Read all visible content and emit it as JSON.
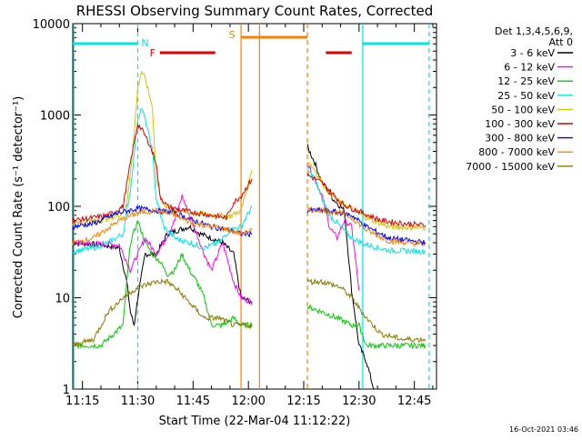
{
  "chart_data": {
    "type": "line",
    "title": "RHESSI Observing Summary Count Rates, Corrected",
    "xlabel": "Start Time (22-Mar-04 11:12:22)",
    "ylabel": "Corrected Count Rate (s⁻¹ detector⁻¹)",
    "y_scale": "log",
    "ylim": [
      1,
      10000
    ],
    "xlim": [
      "11:12:22",
      "12:51:00"
    ],
    "y_ticks": [
      {
        "value": 1,
        "label": "1"
      },
      {
        "value": 10,
        "label": "10"
      },
      {
        "value": 100,
        "label": "100"
      },
      {
        "value": 1000,
        "label": "1000"
      },
      {
        "value": 10000,
        "label": "10000"
      }
    ],
    "x_ticks": [
      {
        "value": "11:15",
        "label": "11:15"
      },
      {
        "value": "11:30",
        "label": "11:30"
      },
      {
        "value": "11:45",
        "label": "11:45"
      },
      {
        "value": "12:00",
        "label": "12:00"
      },
      {
        "value": "12:15",
        "label": "12:15"
      },
      {
        "value": "12:30",
        "label": "12:30"
      },
      {
        "value": "12:45",
        "label": "12:45"
      }
    ],
    "legend": {
      "placement": "right",
      "header": [
        "Det 1,3,4,5,6,9,",
        "Att 0"
      ],
      "entries": [
        {
          "name": "3 - 6 keV",
          "color": "#000000"
        },
        {
          "name": "6 - 12 keV",
          "color": "#ff00ff"
        },
        {
          "name": "12 - 25 keV",
          "color": "#00cc00"
        },
        {
          "name": "25 - 50 keV",
          "color": "#00e5e5"
        },
        {
          "name": "50 - 100 keV",
          "color": "#d4c400"
        },
        {
          "name": "100 - 300 keV",
          "color": "#e00000"
        },
        {
          "name": "300 - 800 keV",
          "color": "#0000ff"
        },
        {
          "name": "800 - 7000 keV",
          "color": "#ff8000"
        },
        {
          "name": "7000 - 15000 keV",
          "color": "#8a7a00"
        }
      ]
    },
    "data_gap": [
      "12:01",
      "12:16"
    ],
    "series": [
      {
        "name": "3 - 6 keV",
        "color": "#000000",
        "segments": [
          [
            [
              "11:12:22",
              40
            ],
            [
              "11:20",
              38
            ],
            [
              "11:25",
              35
            ],
            [
              "11:27",
              15
            ],
            [
              "11:28",
              7
            ],
            [
              "11:29",
              5
            ],
            [
              "11:30",
              10
            ],
            [
              "11:32",
              30
            ],
            [
              "11:35",
              30
            ],
            [
              "11:38",
              50
            ],
            [
              "11:41",
              55
            ],
            [
              "11:44",
              60
            ],
            [
              "11:47",
              50
            ],
            [
              "11:50",
              45
            ],
            [
              "11:53",
              40
            ],
            [
              "11:56",
              30
            ],
            [
              "11:58",
              10
            ],
            [
              "12:01",
              9
            ]
          ],
          [
            [
              "12:16",
              450
            ],
            [
              "12:18",
              300
            ],
            [
              "12:20",
              180
            ],
            [
              "12:23",
              120
            ],
            [
              "12:26",
              90
            ],
            [
              "12:28",
              12
            ],
            [
              "12:30",
              3
            ],
            [
              "12:32",
              2
            ],
            [
              "12:34",
              1
            ]
          ]
        ]
      },
      {
        "name": "6 - 12 keV",
        "color": "#ff00ff",
        "segments": [
          [
            [
              "11:12:22",
              40
            ],
            [
              "11:25",
              38
            ],
            [
              "11:28",
              20
            ],
            [
              "11:30",
              30
            ],
            [
              "11:32",
              45
            ],
            [
              "11:35",
              30
            ],
            [
              "11:37",
              40
            ],
            [
              "11:40",
              70
            ],
            [
              "11:42",
              130
            ],
            [
              "11:44",
              80
            ],
            [
              "11:46",
              50
            ],
            [
              "11:48",
              30
            ],
            [
              "11:50",
              20
            ],
            [
              "11:53",
              40
            ],
            [
              "11:56",
              15
            ],
            [
              "11:58",
              10
            ],
            [
              "12:01",
              9
            ]
          ],
          [
            [
              "12:16",
              300
            ],
            [
              "12:18",
              200
            ],
            [
              "12:20",
              130
            ],
            [
              "12:22",
              60
            ],
            [
              "12:24",
              45
            ],
            [
              "12:26",
              70
            ],
            [
              "12:28",
              60
            ],
            [
              "12:30",
              12
            ]
          ]
        ]
      },
      {
        "name": "12 - 25 keV",
        "color": "#00cc00",
        "segments": [
          [
            [
              "11:12:22",
              3
            ],
            [
              "11:20",
              3
            ],
            [
              "11:26",
              5
            ],
            [
              "11:28",
              40
            ],
            [
              "11:30",
              70
            ],
            [
              "11:32",
              40
            ],
            [
              "11:34",
              30
            ],
            [
              "11:36",
              25
            ],
            [
              "11:38",
              18
            ],
            [
              "11:40",
              20
            ],
            [
              "11:42",
              30
            ],
            [
              "11:44",
              20
            ],
            [
              "11:46",
              15
            ],
            [
              "11:48",
              10
            ],
            [
              "11:50",
              5
            ],
            [
              "11:53",
              5
            ],
            [
              "11:56",
              6
            ],
            [
              "11:58",
              5
            ],
            [
              "12:01",
              5
            ]
          ],
          [
            [
              "12:16",
              8
            ],
            [
              "12:20",
              7
            ],
            [
              "12:24",
              6
            ],
            [
              "12:28",
              5
            ],
            [
              "12:30",
              5
            ],
            [
              "12:32",
              3
            ],
            [
              "12:35",
              3
            ],
            [
              "12:40",
              3
            ],
            [
              "12:48",
              3
            ]
          ]
        ]
      },
      {
        "name": "25 - 50 keV",
        "color": "#00e5e5",
        "segments": [
          [
            [
              "11:12:22",
              32
            ],
            [
              "11:18",
              35
            ],
            [
              "11:22",
              40
            ],
            [
              "11:26",
              50
            ],
            [
              "11:28",
              150
            ],
            [
              "11:30",
              900
            ],
            [
              "11:31",
              1200
            ],
            [
              "11:32",
              900
            ],
            [
              "11:34",
              400
            ],
            [
              "11:35",
              120
            ],
            [
              "11:37",
              60
            ],
            [
              "11:40",
              45
            ],
            [
              "11:44",
              40
            ],
            [
              "11:48",
              35
            ],
            [
              "11:52",
              40
            ],
            [
              "11:55",
              55
            ],
            [
              "11:58",
              60
            ],
            [
              "12:01",
              100
            ]
          ],
          [
            [
              "12:16",
              250
            ],
            [
              "12:18",
              200
            ],
            [
              "12:20",
              120
            ],
            [
              "12:22",
              80
            ],
            [
              "12:25",
              60
            ],
            [
              "12:28",
              45
            ],
            [
              "12:32",
              38
            ],
            [
              "12:38",
              33
            ],
            [
              "12:48",
              32
            ]
          ]
        ]
      },
      {
        "name": "50 - 100 keV",
        "color": "#d4c400",
        "segments": [
          [
            [
              "11:12:22",
              65
            ],
            [
              "11:20",
              70
            ],
            [
              "11:25",
              80
            ],
            [
              "11:27",
              100
            ],
            [
              "11:29",
              600
            ],
            [
              "11:30",
              2000
            ],
            [
              "11:31",
              3000
            ],
            [
              "11:32",
              2500
            ],
            [
              "11:34",
              1200
            ],
            [
              "11:35",
              200
            ],
            [
              "11:37",
              100
            ],
            [
              "11:40",
              90
            ],
            [
              "11:45",
              85
            ],
            [
              "11:50",
              80
            ],
            [
              "11:55",
              78
            ],
            [
              "11:58",
              90
            ],
            [
              "12:01",
              250
            ]
          ],
          [
            [
              "12:16",
              320
            ],
            [
              "12:18",
              250
            ],
            [
              "12:20",
              180
            ],
            [
              "12:22",
              140
            ],
            [
              "12:25",
              110
            ],
            [
              "12:28",
              95
            ],
            [
              "12:32",
              75
            ],
            [
              "12:38",
              60
            ],
            [
              "12:48",
              58
            ]
          ]
        ]
      },
      {
        "name": "100 - 300 keV",
        "color": "#e00000",
        "segments": [
          [
            [
              "11:12:22",
              70
            ],
            [
              "11:18",
              75
            ],
            [
              "11:22",
              80
            ],
            [
              "11:26",
              100
            ],
            [
              "11:28",
              300
            ],
            [
              "11:30",
              800
            ],
            [
              "11:31",
              700
            ],
            [
              "11:33",
              500
            ],
            [
              "11:35",
              300
            ],
            [
              "11:36",
              130
            ],
            [
              "11:38",
              100
            ],
            [
              "11:42",
              90
            ],
            [
              "11:46",
              85
            ],
            [
              "11:50",
              80
            ],
            [
              "11:54",
              75
            ],
            [
              "11:56",
              110
            ],
            [
              "11:58",
              130
            ],
            [
              "12:01",
              200
            ]
          ],
          [
            [
              "12:16",
              220
            ],
            [
              "12:18",
              200
            ],
            [
              "12:20",
              180
            ],
            [
              "12:22",
              150
            ],
            [
              "12:25",
              110
            ],
            [
              "12:28",
              95
            ],
            [
              "12:31",
              85
            ],
            [
              "12:36",
              70
            ],
            [
              "12:42",
              65
            ],
            [
              "12:48",
              62
            ]
          ]
        ]
      },
      {
        "name": "300 - 800 keV",
        "color": "#0000ff",
        "segments": [
          [
            [
              "11:12:22",
              60
            ],
            [
              "11:18",
              65
            ],
            [
              "11:25",
              85
            ],
            [
              "11:30",
              95
            ],
            [
              "11:35",
              90
            ],
            [
              "11:40",
              85
            ],
            [
              "11:45",
              70
            ],
            [
              "11:50",
              60
            ],
            [
              "11:55",
              55
            ],
            [
              "11:58",
              50
            ],
            [
              "12:01",
              50
            ]
          ],
          [
            [
              "12:16",
              90
            ],
            [
              "12:20",
              90
            ],
            [
              "12:25",
              85
            ],
            [
              "12:28",
              80
            ],
            [
              "12:32",
              60
            ],
            [
              "12:38",
              45
            ],
            [
              "12:48",
              40
            ]
          ]
        ]
      },
      {
        "name": "800 - 7000 keV",
        "color": "#ff8000",
        "segments": [
          [
            [
              "11:12:22",
              40
            ],
            [
              "11:18",
              45
            ],
            [
              "11:25",
              70
            ],
            [
              "11:30",
              85
            ],
            [
              "11:35",
              90
            ],
            [
              "11:40",
              80
            ],
            [
              "11:45",
              65
            ],
            [
              "11:50",
              60
            ],
            [
              "11:55",
              55
            ],
            [
              "11:58",
              50
            ],
            [
              "12:01",
              55
            ]
          ],
          [
            [
              "12:16",
              90
            ],
            [
              "12:20",
              92
            ],
            [
              "12:25",
              85
            ],
            [
              "12:28",
              75
            ],
            [
              "12:32",
              55
            ],
            [
              "12:38",
              42
            ],
            [
              "12:48",
              38
            ]
          ]
        ]
      },
      {
        "name": "7000 - 15000 keV",
        "color": "#8a7a00",
        "segments": [
          [
            [
              "11:12:22",
              3
            ],
            [
              "11:18",
              3.5
            ],
            [
              "11:22",
              7
            ],
            [
              "11:26",
              10
            ],
            [
              "11:30",
              13
            ],
            [
              "11:35",
              15
            ],
            [
              "11:38",
              15
            ],
            [
              "11:41",
              12
            ],
            [
              "11:45",
              8
            ],
            [
              "11:48",
              6
            ],
            [
              "11:52",
              6
            ],
            [
              "11:56",
              5
            ],
            [
              "12:01",
              5
            ]
          ],
          [
            [
              "12:16",
              15
            ],
            [
              "12:20",
              15
            ],
            [
              "12:25",
              13
            ],
            [
              "12:28",
              10
            ],
            [
              "12:32",
              6
            ],
            [
              "12:36",
              4
            ],
            [
              "12:42",
              3.5
            ],
            [
              "12:48",
              3.5
            ]
          ]
        ]
      }
    ],
    "annotations": [
      {
        "label": "N",
        "color": "#00e5e5",
        "x": "11:30",
        "vline": "dashed",
        "bar": [
          "11:12:22",
          "11:30"
        ]
      },
      {
        "label": "",
        "color": "#00e5e5",
        "vline": "solid",
        "x": "12:31",
        "bar": [
          "12:31",
          "12:49"
        ]
      },
      {
        "label": "",
        "color": "#00e5e5",
        "vline": "dashed",
        "x": "12:49"
      },
      {
        "label": "",
        "color": "#00e5e5",
        "vline": "solid",
        "x": "11:12:40"
      },
      {
        "label": "F",
        "color": "#e00000",
        "bar": [
          "11:36",
          "11:51"
        ]
      },
      {
        "label": "",
        "color": "#e00000",
        "bar": [
          "12:21",
          "12:28"
        ]
      },
      {
        "label": "S",
        "color": "#ff8000",
        "x": "11:58",
        "vline": "solid",
        "bar": [
          "11:58",
          "12:16"
        ]
      },
      {
        "label": "",
        "color": "#ff8000",
        "vline": "dashed",
        "x": "12:16"
      },
      {
        "label": "",
        "color": "#ff8000",
        "vline": "solid",
        "x": "12:03"
      }
    ]
  },
  "timestamp": "16-Oct-2021 03:46"
}
